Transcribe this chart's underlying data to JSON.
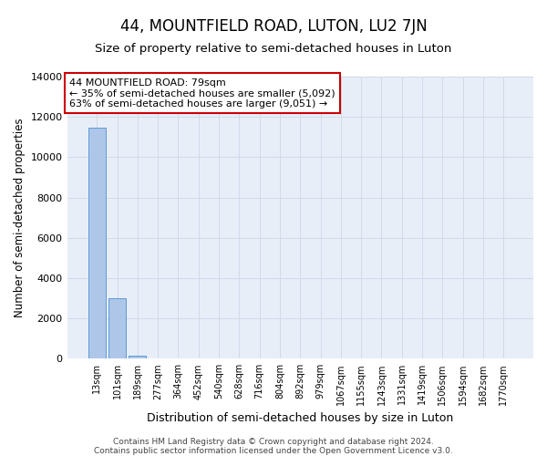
{
  "title": "44, MOUNTFIELD ROAD, LUTON, LU2 7JN",
  "subtitle": "Size of property relative to semi-detached houses in Luton",
  "xlabel": "Distribution of semi-detached houses by size in Luton",
  "ylabel": "Number of semi-detached properties",
  "footnote1": "Contains HM Land Registry data © Crown copyright and database right 2024.",
  "footnote2": "Contains public sector information licensed under the Open Government Licence v3.0.",
  "bar_labels": [
    "13sqm",
    "101sqm",
    "189sqm",
    "277sqm",
    "364sqm",
    "452sqm",
    "540sqm",
    "628sqm",
    "716sqm",
    "804sqm",
    "892sqm",
    "979sqm",
    "1067sqm",
    "1155sqm",
    "1243sqm",
    "1331sqm",
    "1419sqm",
    "1506sqm",
    "1594sqm",
    "1682sqm",
    "1770sqm"
  ],
  "bar_values": [
    11450,
    3000,
    150,
    0,
    0,
    0,
    0,
    0,
    0,
    0,
    0,
    0,
    0,
    0,
    0,
    0,
    0,
    0,
    0,
    0,
    0
  ],
  "bar_color": "#aec6e8",
  "bar_edge_color": "#5b9bd5",
  "ylim": [
    0,
    14000
  ],
  "yticks": [
    0,
    2000,
    4000,
    6000,
    8000,
    10000,
    12000,
    14000
  ],
  "annotation_title": "44 MOUNTFIELD ROAD: 79sqm",
  "annotation_line1": "← 35% of semi-detached houses are smaller (5,092)",
  "annotation_line2": "63% of semi-detached houses are larger (9,051) →",
  "annotation_box_color": "#ffffff",
  "annotation_border_color": "#cc0000",
  "grid_color": "#d0daea",
  "background_color": "#e8eef8",
  "title_fontsize": 12,
  "subtitle_fontsize": 9.5,
  "ylabel_fontsize": 8.5,
  "xlabel_fontsize": 9,
  "tick_fontsize": 8,
  "xtick_fontsize": 7,
  "footnote_fontsize": 6.5
}
